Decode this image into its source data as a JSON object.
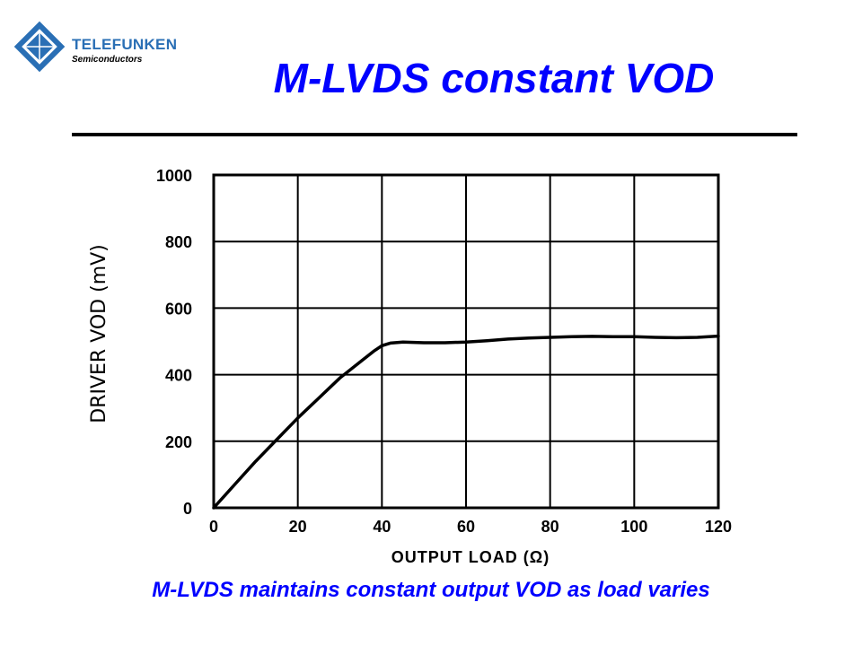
{
  "logo": {
    "brand": "TELEFUNKEN",
    "sub": "Semiconductors",
    "emblem_text": "TELEFUNKEN",
    "brand_color": "#2a6fb5"
  },
  "title": "M-LVDS constant VOD",
  "caption": "M-LVDS maintains constant output VOD as load varies",
  "colors": {
    "title": "#0000ff",
    "caption": "#0000ff",
    "line": "#000000"
  },
  "chart_data": {
    "type": "line",
    "xlabel": "OUTPUT LOAD (Ω)",
    "ylabel": "DRIVER VOD (mV)",
    "xlim": [
      0,
      120
    ],
    "ylim": [
      0,
      1000
    ],
    "xticks": [
      0,
      20,
      40,
      60,
      80,
      100,
      120
    ],
    "yticks": [
      0,
      200,
      400,
      600,
      800,
      1000
    ],
    "grid": true,
    "series": [
      {
        "x": [
          0,
          5,
          10,
          15,
          20,
          25,
          30,
          35,
          38,
          40,
          42,
          45,
          50,
          55,
          60,
          65,
          70,
          75,
          80,
          85,
          90,
          95,
          100,
          105,
          110,
          115,
          120
        ],
        "y": [
          0,
          70,
          140,
          205,
          270,
          330,
          390,
          440,
          470,
          487,
          495,
          498,
          496,
          496,
          498,
          502,
          507,
          510,
          512,
          514,
          515,
          514,
          514,
          512,
          511,
          512,
          516
        ]
      }
    ]
  }
}
